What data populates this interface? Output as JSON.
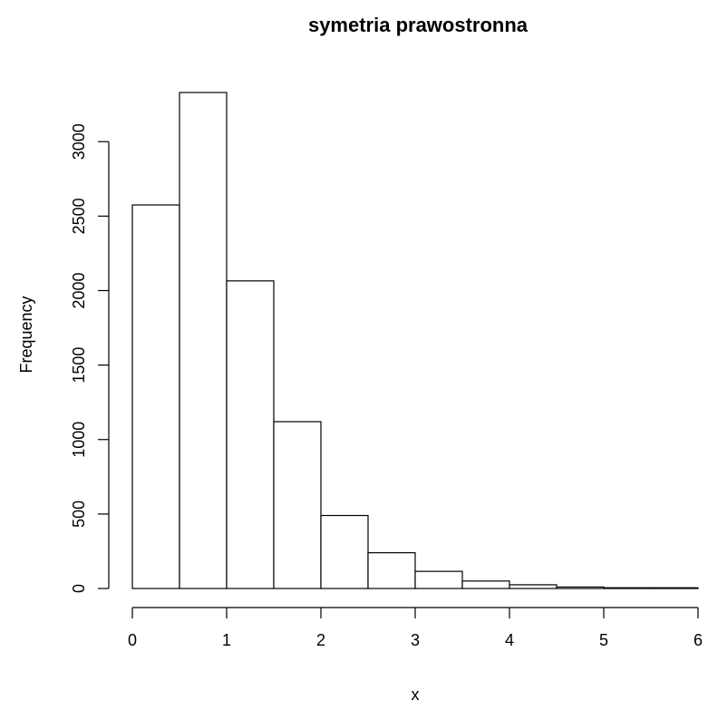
{
  "chart_data": {
    "type": "bar",
    "subtype": "histogram",
    "title": "symetria prawostronna",
    "xlabel": "x",
    "ylabel": "Frequency",
    "bin_edges": [
      0,
      0.5,
      1,
      1.5,
      2,
      2.5,
      3,
      3.5,
      4,
      4.5,
      5,
      5.5,
      6
    ],
    "values": [
      2575,
      3330,
      2065,
      1120,
      490,
      240,
      115,
      50,
      25,
      10,
      5,
      5
    ],
    "xlim": [
      0,
      6
    ],
    "ylim": [
      0,
      3330
    ],
    "x_ticks": [
      0,
      1,
      2,
      3,
      4,
      5,
      6
    ],
    "y_ticks": [
      0,
      500,
      1000,
      1500,
      2000,
      2500,
      3000
    ],
    "grid": false,
    "legend": "none",
    "colors": {
      "bar_fill": "#ffffff",
      "bar_stroke": "#000000"
    }
  }
}
